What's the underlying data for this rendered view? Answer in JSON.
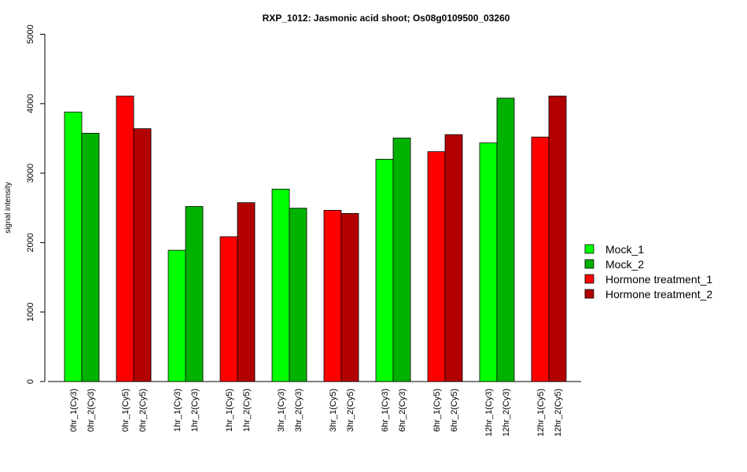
{
  "chart_data": {
    "type": "bar",
    "title": "RXP_1012: Jasmonic acid shoot; Os08g0109500_03260",
    "ylabel": "signal intensity",
    "xlabel": "",
    "ylim": [
      0,
      5000
    ],
    "yticks": [
      0,
      1000,
      2000,
      3000,
      4000,
      5000
    ],
    "categories": [
      "0hr_1(Cy3)",
      "0hr_2(Cy3)",
      "0hr_1(Cy5)",
      "0hr_2(Cy5)",
      "1hr_1(Cy3)",
      "1hr_2(Cy3)",
      "1hr_1(Cy5)",
      "1hr_2(Cy5)",
      "3hr_1(Cy3)",
      "3hr_2(Cy3)",
      "3hr_1(Cy5)",
      "3hr_2(Cy5)",
      "6hr_1(Cy3)",
      "6hr_2(Cy3)",
      "6hr_1(Cy5)",
      "6hr_2(Cy5)",
      "12hr_1(Cy3)",
      "12hr_2(Cy3)",
      "12hr_1(Cy5)",
      "12hr_2(Cy5)"
    ],
    "values": [
      3880,
      3575,
      4110,
      3640,
      1890,
      2520,
      2085,
      2575,
      2770,
      2495,
      2465,
      2420,
      3200,
      3505,
      3310,
      3555,
      3435,
      4080,
      3520,
      4110
    ],
    "series_index": [
      0,
      1,
      2,
      3,
      0,
      1,
      2,
      3,
      0,
      1,
      2,
      3,
      0,
      1,
      2,
      3,
      0,
      1,
      2,
      3
    ],
    "series": [
      {
        "name": "Mock_1",
        "color": "#00ff00"
      },
      {
        "name": "Mock_2",
        "color": "#00b200"
      },
      {
        "name": "Hormone treatment_1",
        "color": "#ff0000"
      },
      {
        "name": "Hormone treatment_2",
        "color": "#b20000"
      }
    ],
    "legend_position": "right",
    "grid": false
  }
}
